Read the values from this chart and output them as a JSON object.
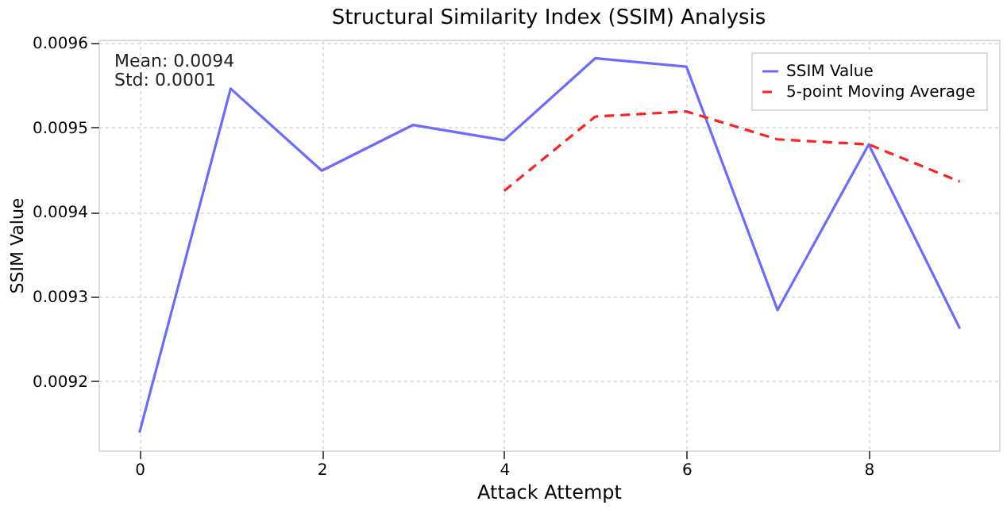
{
  "chart_data": {
    "type": "line",
    "title": "Structural Similarity Index (SSIM) Analysis",
    "xlabel": "Attack Attempt",
    "ylabel": "SSIM Value",
    "annotations": [
      "Mean: 0.0094",
      "Std: 0.0001"
    ],
    "series": [
      {
        "name": "SSIM Value",
        "color": "#6b6bff",
        "line_style": "solid",
        "x": [
          0,
          1,
          2,
          3,
          4,
          5,
          6,
          7,
          8,
          9
        ],
        "values": [
          0.009139,
          0.009546,
          0.009449,
          0.009503,
          0.009485,
          0.009582,
          0.009572,
          0.009284,
          0.00948,
          0.009262
        ]
      },
      {
        "name": "5-point Moving Average",
        "color": "#ff2020",
        "line_style": "dashed",
        "x": [
          4,
          5,
          6,
          7,
          8,
          9
        ],
        "values": [
          0.009425,
          0.009513,
          0.009519,
          0.009486,
          0.00948,
          0.009436
        ]
      }
    ],
    "xlim": [
      -0.45,
      9.43
    ],
    "ylim": [
      0.009118,
      0.009604
    ],
    "xticks": [
      0,
      2,
      4,
      6,
      8
    ],
    "yticks": [
      0.0092,
      0.0093,
      0.0094,
      0.0095,
      0.0096
    ],
    "grid": true,
    "legend": "top right",
    "marker": "none"
  }
}
